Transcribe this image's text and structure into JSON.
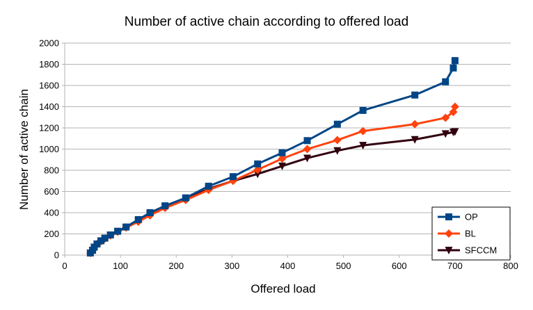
{
  "chart_data": {
    "type": "line",
    "title": "Number of active chain according to offered load",
    "xlabel": "Offered load",
    "ylabel": "Number of active chain",
    "xlim": [
      0,
      800
    ],
    "ylim": [
      0,
      2000
    ],
    "xticks": [
      0,
      100,
      200,
      300,
      400,
      500,
      600,
      700,
      800
    ],
    "yticks": [
      0,
      200,
      400,
      600,
      800,
      1000,
      1200,
      1400,
      1600,
      1800,
      2000
    ],
    "grid": "horizontal",
    "legend_position": "bottom-right",
    "series": [
      {
        "name": "OP",
        "color": "#004586",
        "marker": "square",
        "points": [
          [
            46,
            20
          ],
          [
            50,
            45
          ],
          [
            53,
            75
          ],
          [
            58,
            105
          ],
          [
            65,
            135
          ],
          [
            72,
            160
          ],
          [
            82,
            190
          ],
          [
            95,
            225
          ],
          [
            110,
            265
          ],
          [
            132,
            335
          ],
          [
            153,
            400
          ],
          [
            180,
            465
          ],
          [
            217,
            540
          ],
          [
            258,
            650
          ],
          [
            302,
            740
          ],
          [
            346,
            860
          ],
          [
            390,
            965
          ],
          [
            435,
            1080
          ],
          [
            489,
            1235
          ],
          [
            535,
            1365
          ],
          [
            628,
            1510
          ],
          [
            683,
            1635
          ],
          [
            697,
            1765
          ],
          [
            700,
            1835
          ]
        ]
      },
      {
        "name": "BL",
        "color": "#ff420e",
        "marker": "diamond",
        "points": [
          [
            46,
            20
          ],
          [
            50,
            45
          ],
          [
            53,
            75
          ],
          [
            58,
            105
          ],
          [
            65,
            130
          ],
          [
            72,
            155
          ],
          [
            82,
            185
          ],
          [
            95,
            220
          ],
          [
            110,
            260
          ],
          [
            132,
            315
          ],
          [
            153,
            375
          ],
          [
            180,
            445
          ],
          [
            217,
            520
          ],
          [
            258,
            615
          ],
          [
            302,
            700
          ],
          [
            346,
            805
          ],
          [
            390,
            910
          ],
          [
            435,
            1000
          ],
          [
            489,
            1085
          ],
          [
            535,
            1170
          ],
          [
            628,
            1235
          ],
          [
            683,
            1295
          ],
          [
            697,
            1350
          ],
          [
            700,
            1400
          ]
        ]
      },
      {
        "name": "SFCCM",
        "color": "#31000f",
        "marker": "triangle-down",
        "points": [
          [
            46,
            20
          ],
          [
            50,
            45
          ],
          [
            53,
            75
          ],
          [
            58,
            105
          ],
          [
            65,
            130
          ],
          [
            72,
            155
          ],
          [
            82,
            185
          ],
          [
            95,
            220
          ],
          [
            110,
            260
          ],
          [
            132,
            320
          ],
          [
            153,
            385
          ],
          [
            180,
            450
          ],
          [
            217,
            525
          ],
          [
            258,
            625
          ],
          [
            302,
            700
          ],
          [
            346,
            765
          ],
          [
            390,
            840
          ],
          [
            435,
            915
          ],
          [
            489,
            985
          ],
          [
            535,
            1035
          ],
          [
            628,
            1090
          ],
          [
            683,
            1145
          ],
          [
            697,
            1160
          ],
          [
            700,
            1165
          ]
        ]
      }
    ]
  }
}
